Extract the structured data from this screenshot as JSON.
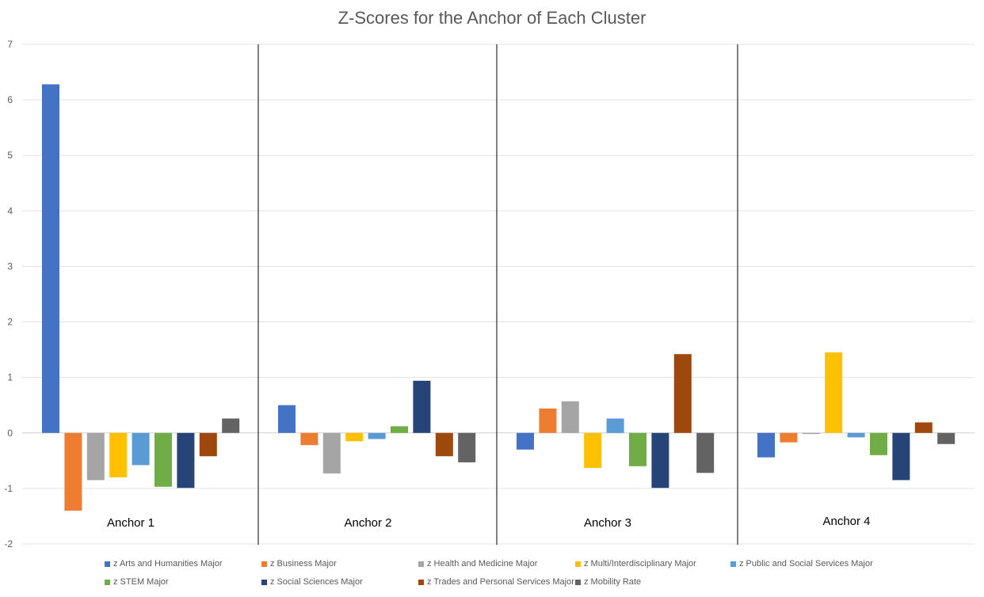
{
  "chart_data": {
    "type": "bar",
    "title": "Z-Scores for the Anchor of Each Cluster",
    "xlabel": "",
    "ylabel": "",
    "ylim": [
      -2,
      7
    ],
    "yticks": [
      "-2",
      "-1",
      "0",
      "1",
      "2",
      "3",
      "4",
      "5",
      "6",
      "7"
    ],
    "grid": true,
    "legend_position": "bottom",
    "categories": [
      "Anchor 1",
      "Anchor 2",
      "Anchor 3",
      "Anchor 4"
    ],
    "series": [
      {
        "name": "z Arts and Humanities Major",
        "color": "#4472C4",
        "values": [
          6.28,
          0.5,
          -0.3,
          -0.44
        ]
      },
      {
        "name": "z Business Major",
        "color": "#ED7D31",
        "values": [
          -1.4,
          -0.22,
          0.44,
          -0.17
        ]
      },
      {
        "name": "z Health and Medicine Major",
        "color": "#A5A5A5",
        "values": [
          -0.85,
          -0.73,
          0.57,
          -0.02
        ]
      },
      {
        "name": "z Multi/Interdisciplinary Major",
        "color": "#FFC000",
        "values": [
          -0.8,
          -0.15,
          -0.63,
          1.45
        ]
      },
      {
        "name": "z Public and Social Services Major",
        "color": "#5B9BD5",
        "values": [
          -0.58,
          -0.11,
          0.26,
          -0.08
        ]
      },
      {
        "name": "z STEM Major",
        "color": "#70AD47",
        "values": [
          -0.97,
          0.12,
          -0.6,
          -0.4
        ]
      },
      {
        "name": "z Social Sciences Major",
        "color": "#264478",
        "values": [
          -0.99,
          0.94,
          -0.99,
          -0.85
        ]
      },
      {
        "name": "z Trades and Personal Services Major",
        "color": "#9E480E",
        "values": [
          -0.42,
          -0.42,
          1.42,
          0.19
        ]
      },
      {
        "name": "z Mobility Rate",
        "color": "#636363",
        "values": [
          0.26,
          -0.53,
          -0.72,
          -0.2
        ]
      }
    ]
  }
}
